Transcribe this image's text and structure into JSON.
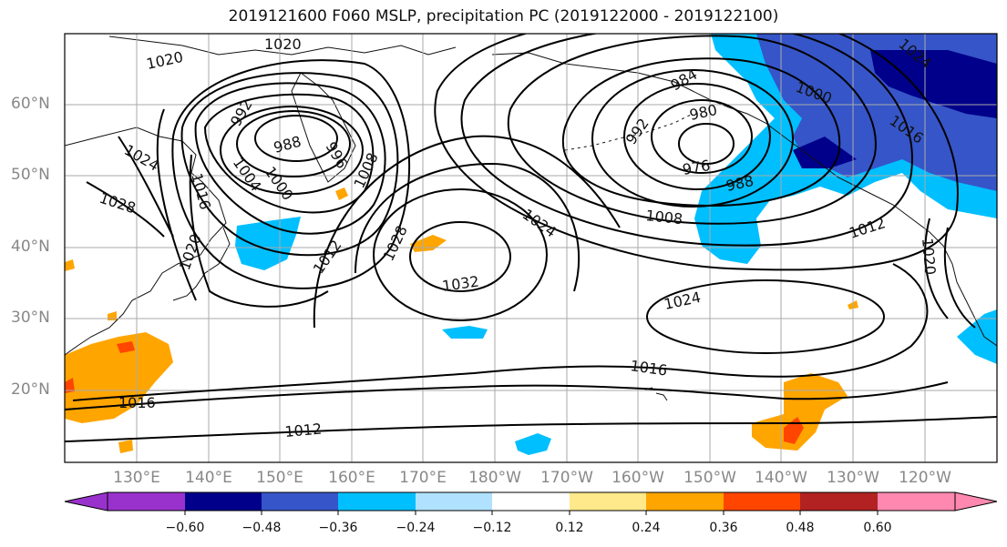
{
  "title": "2019121600 F060 MSLP, precipitation PC (2019122000 - 2019122100)",
  "latitude_labels": [
    "60°N",
    "50°N",
    "40°N",
    "30°N",
    "20°N"
  ],
  "longitude_labels": [
    "130°E",
    "140°E",
    "150°E",
    "160°E",
    "170°E",
    "180°W",
    "170°W",
    "160°W",
    "150°W",
    "140°W",
    "130°W",
    "120°W"
  ],
  "contour_labels": [
    "1020",
    "1020",
    "1024",
    "1028",
    "1016",
    "1020",
    "992",
    "988",
    "996",
    "1004",
    "1000",
    "1008",
    "1012",
    "1028",
    "1032",
    "1024",
    "992",
    "984",
    "980",
    "976",
    "988",
    "1008",
    "1024",
    "1012",
    "1000",
    "1016",
    "1024",
    "1020",
    "1016",
    "1012",
    "1016"
  ],
  "colorbar": {
    "tick_labels": [
      "−0.60",
      "−0.48",
      "−0.36",
      "−0.24",
      "−0.12",
      "0.12",
      "0.24",
      "0.36",
      "0.48",
      "0.60"
    ],
    "colors": [
      "#9932cc",
      "#00008b",
      "#3655c8",
      "#00bfff",
      "#b0e2ff",
      "#ffffff",
      "#ffe98a",
      "#ffa500",
      "#ff4500",
      "#b22222",
      "#ff88b0"
    ]
  }
}
